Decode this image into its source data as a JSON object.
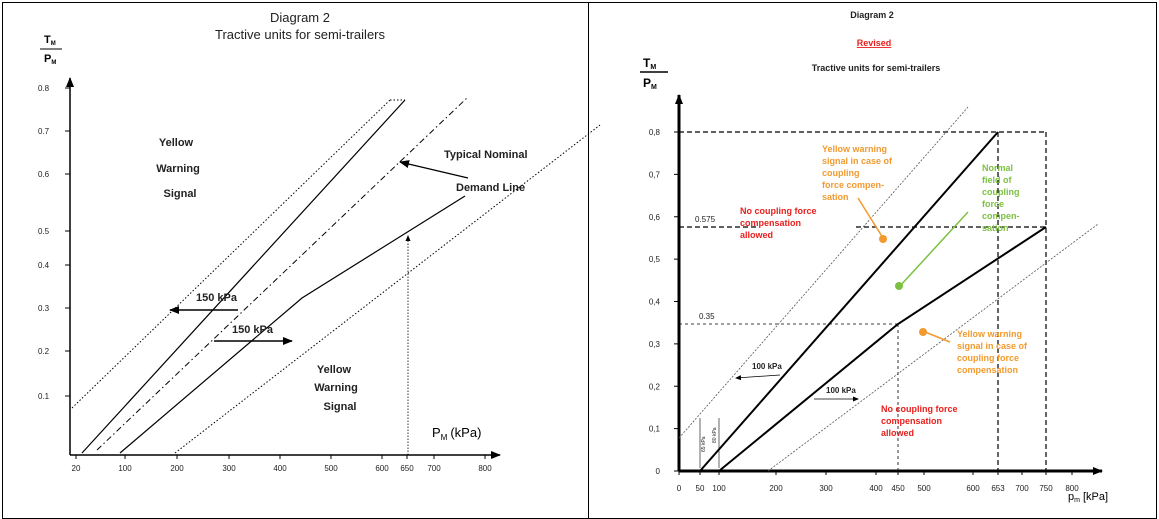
{
  "left": {
    "title": "Diagram 2",
    "subtitle": "Tractive units for semi-trailers",
    "y_label_num": "T",
    "y_label_num_sub": "M",
    "y_label_den": "P",
    "y_label_den_sub": "M",
    "y_ticks": [
      "0.1",
      "0.2",
      "0.3",
      "0.4",
      "0.5",
      "0.6",
      "0.7",
      "0.8"
    ],
    "x_ticks": [
      "20",
      "100",
      "200",
      "300",
      "400",
      "500",
      "600",
      "650",
      "700",
      "800"
    ],
    "x_label_main": "P",
    "x_label_sub": "M",
    "x_label_unit": "(kPa)",
    "yellow_top": [
      "Yellow",
      "Warning",
      "Signal"
    ],
    "yellow_bottom": [
      "Yellow",
      "Warning",
      "Signal"
    ],
    "nominal_label": [
      "Typical Nominal",
      "Demand Line"
    ],
    "offset_upper": "150 kPa",
    "offset_lower": "150 kPa"
  },
  "right": {
    "title": "Diagram 2",
    "revised": "Revised",
    "subtitle": "Tractive units for semi-trailers",
    "y_label_num": "T",
    "y_label_num_sub": "M",
    "y_label_den": "P",
    "y_label_den_sub": "M",
    "y_ticks": [
      "0",
      "0,1",
      "0,2",
      "0,3",
      "0,4",
      "0,5",
      "0,6",
      "0,7",
      "0,8"
    ],
    "x_ticks": [
      "0",
      "50",
      "100",
      "200",
      "300",
      "400",
      "450",
      "500",
      "600",
      "653",
      "700",
      "750",
      "800"
    ],
    "x_label_main": "p",
    "x_label_sub": "m",
    "x_label_unit": "[kPa]",
    "guide_0575": "0.575",
    "guide_035": "0.35",
    "offset_upper": "100 kPa",
    "offset_lower": "100 kPa",
    "tiny_65": "65 kPa",
    "tiny_80": "80 kPa",
    "no_coupling_top": [
      "No coupling force",
      "compensation",
      "allowed"
    ],
    "no_coupling_bottom": [
      "No coupling force",
      "compensation",
      "allowed"
    ],
    "yellow_top": [
      "Yellow warning",
      "signal in case of",
      "coupling",
      "force compen-",
      "sation"
    ],
    "normal_field": [
      "Normal",
      "field of",
      "coupling",
      "force",
      "compen-",
      "sation"
    ],
    "yellow_bottom": [
      "Yellow warning",
      "signal in case of",
      "coupling force",
      "compensation"
    ],
    "colors": {
      "red": "#e8201e",
      "orange": "#f29a2e",
      "green": "#7cc142"
    }
  }
}
